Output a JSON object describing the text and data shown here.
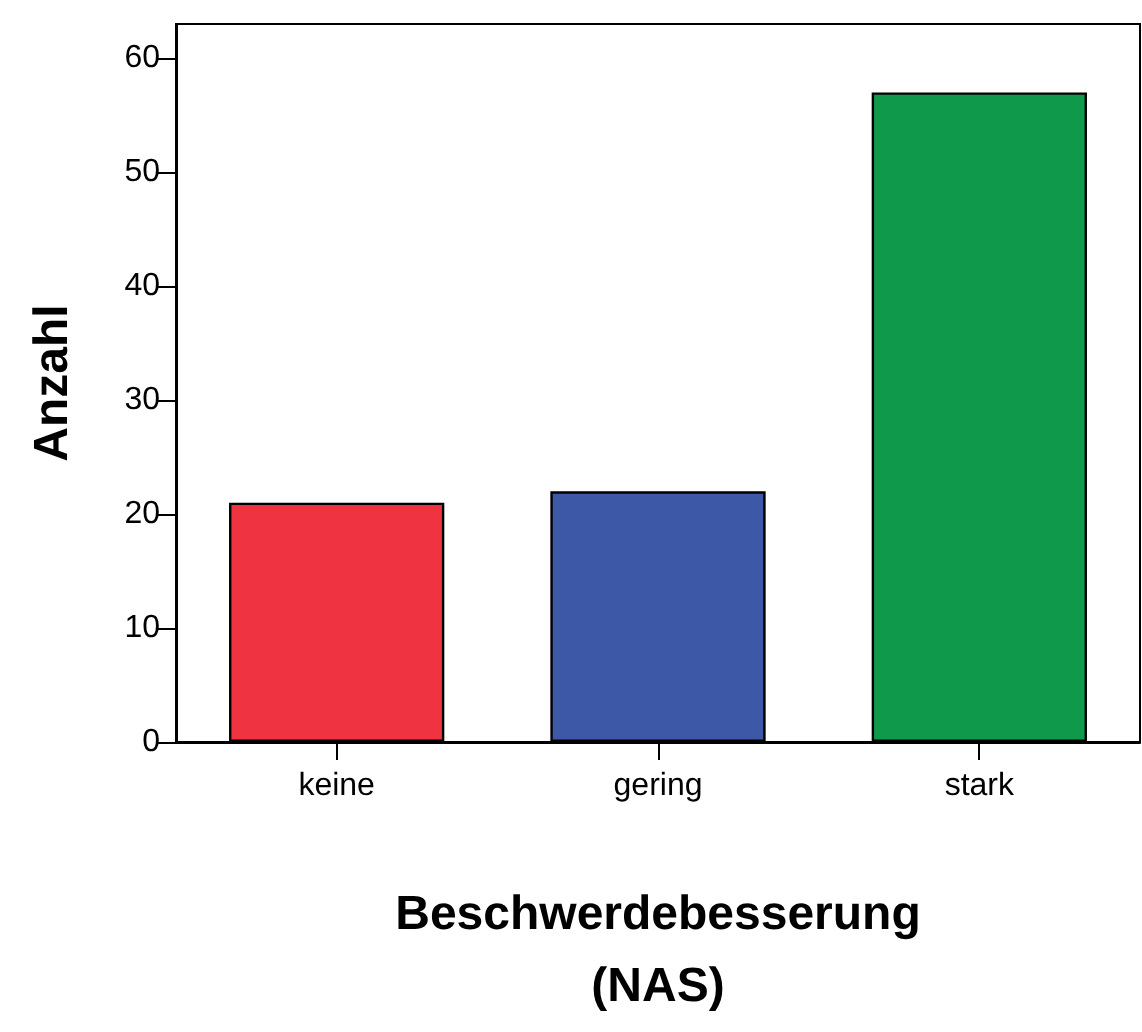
{
  "chart_data": {
    "type": "bar",
    "xlabel": "Beschwerdebesserung (NAS)",
    "ylabel": "Anzahl",
    "categories": [
      "keine",
      "gering",
      "stark"
    ],
    "values": [
      21,
      22,
      57
    ],
    "colors": [
      "#ef3340",
      "#3e58a8",
      "#0f9a4b"
    ],
    "ylim": [
      0,
      63
    ],
    "yticks": [
      0,
      10,
      20,
      30,
      40,
      50,
      60
    ]
  }
}
